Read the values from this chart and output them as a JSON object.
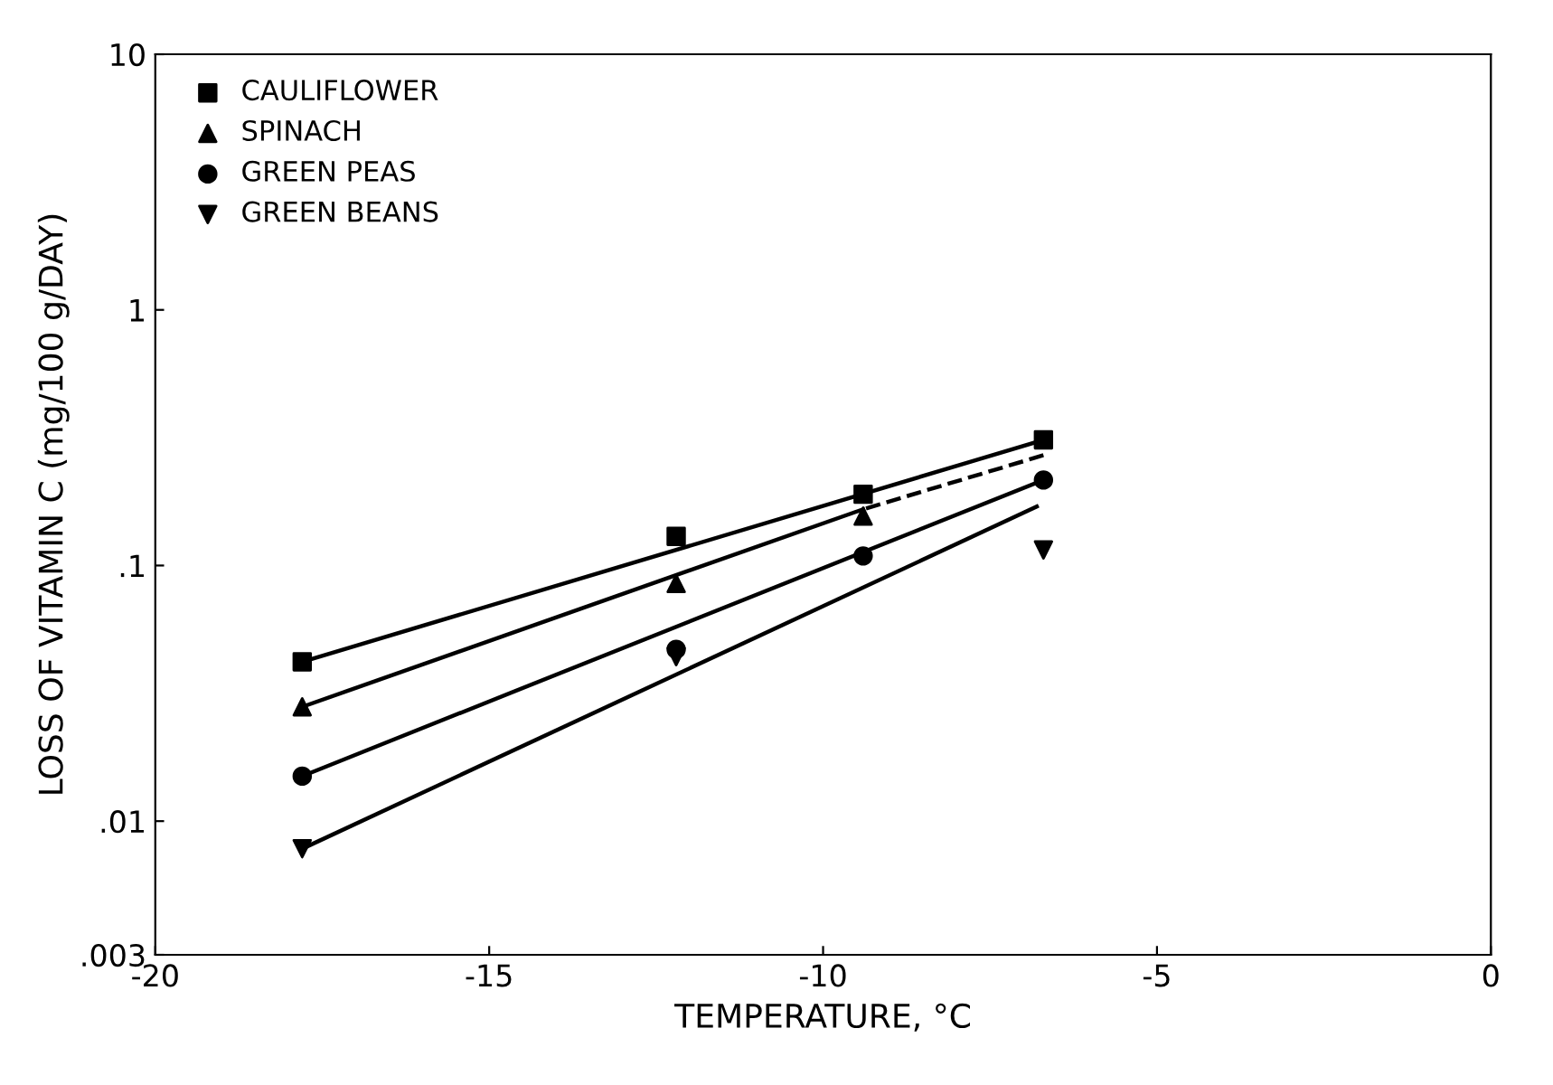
{
  "chart_data": {
    "type": "scatter",
    "xlabel": "TEMPERATURE, °C",
    "ylabel": "LOSS OF VITAMIN C (mg/100 g/DAY)",
    "log": "y",
    "xlim": [
      -20,
      0
    ],
    "ylim": [
      0.003,
      10
    ],
    "xticks": [
      -20,
      -15,
      -10,
      -5,
      0
    ],
    "yticks": [
      {
        "value": 0.003,
        "label": ".003"
      },
      {
        "value": 0.01,
        "label": ".01"
      },
      {
        "value": 0.1,
        "label": ".1"
      },
      1,
      10
    ],
    "grid": false,
    "legend": "top left",
    "series": [
      {
        "name": "CAULIFLOWER",
        "color": "#000000",
        "marker": "square",
        "x": [
          -6.7,
          -9.4,
          -12.2,
          -17.8
        ],
        "values": [
          0.31,
          0.19,
          0.13,
          0.042
        ]
      },
      {
        "name": "SPINACH",
        "color": "#000000",
        "marker": "triangle",
        "x": [
          -9.4,
          -12.2,
          -17.8
        ],
        "values": [
          0.156,
          0.085,
          0.028
        ]
      },
      {
        "name": "GREEN PEAS",
        "color": "#000000",
        "marker": "circle",
        "x": [
          -6.7,
          -9.4,
          -12.2,
          -17.8
        ],
        "values": [
          0.216,
          0.109,
          0.047,
          0.015
        ]
      },
      {
        "name": "GREEN BEANS",
        "color": "#000000",
        "marker": "triangle_down",
        "x": [
          -6.7,
          -12.2,
          -17.8
        ],
        "values": [
          0.115,
          0.044,
          0.0078
        ]
      },
      {
        "type": "line",
        "color": "#000000",
        "line_style": "solid",
        "x": [
          -6.7,
          -17.8
        ],
        "values": [
          0.31,
          0.042
        ]
      },
      {
        "type": "line",
        "color": "#000000",
        "line_style": "dashed",
        "x": [
          -6.7,
          -9.4
        ],
        "values": [
          0.27,
          0.166
        ]
      },
      {
        "type": "line",
        "color": "#000000",
        "line_style": "solid",
        "x": [
          -9.4,
          -17.8
        ],
        "values": [
          0.166,
          0.028
        ]
      },
      {
        "type": "line",
        "color": "#000000",
        "line_style": "solid",
        "x": [
          -6.7,
          -17.8
        ],
        "values": [
          0.216,
          0.015
        ]
      },
      {
        "type": "line",
        "color": "#000000",
        "line_style": "solid",
        "x": [
          -6.8,
          -17.8
        ],
        "values": [
          0.17,
          0.0078
        ]
      }
    ]
  }
}
